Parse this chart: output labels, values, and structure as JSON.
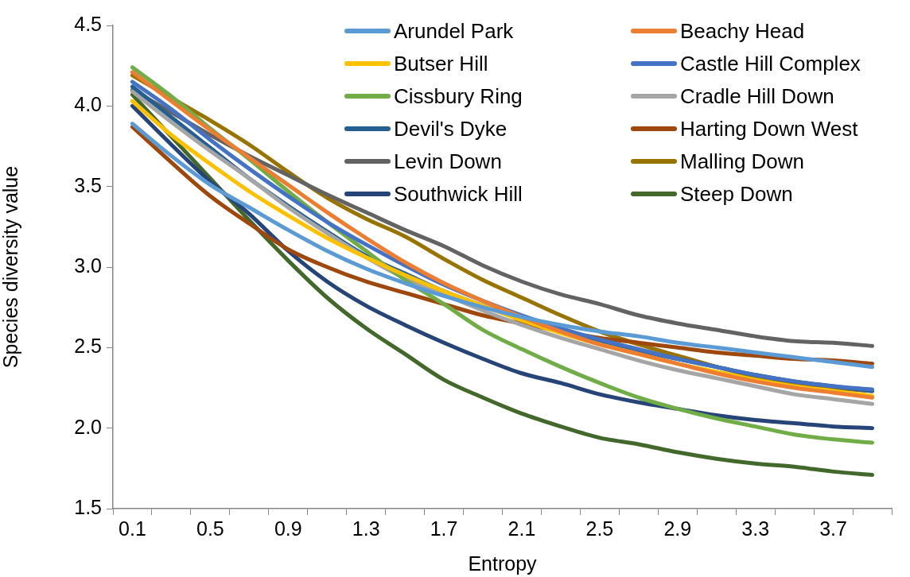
{
  "chart_data": {
    "type": "line",
    "xlabel": "Entropy",
    "ylabel": "Species diversity value",
    "categories": [
      "0.1",
      null,
      "0.5",
      null,
      "0.9",
      null,
      "1.3",
      null,
      "1.7",
      null,
      "2.1",
      null,
      "2.5",
      null,
      "2.9",
      null,
      "3.3",
      null,
      "3.7",
      null
    ],
    "ylim": [
      1.5,
      4.5
    ],
    "yticks": [
      1.5,
      {
        "value": 2,
        "label": "2.0"
      },
      2.5,
      {
        "value": 3,
        "label": "3.0"
      },
      3.5,
      {
        "value": 4,
        "label": "4.0"
      },
      4.5
    ],
    "legend": "top right",
    "marker": "none",
    "series": [
      {
        "name": "Arundel Park",
        "color": "#5b9bd5",
        "values": [
          3.89,
          3.69,
          3.51,
          3.37,
          3.23,
          3.1,
          2.99,
          2.9,
          2.82,
          2.75,
          2.69,
          2.64,
          2.6,
          2.57,
          2.53,
          2.5,
          2.47,
          2.44,
          2.41,
          2.38
        ]
      },
      {
        "name": "Beachy Head",
        "color": "#ed7d31",
        "values": [
          4.21,
          4.03,
          3.85,
          3.68,
          3.51,
          3.34,
          3.18,
          3.03,
          2.9,
          2.79,
          2.69,
          2.6,
          2.52,
          2.46,
          2.4,
          2.34,
          2.29,
          2.25,
          2.22,
          2.19
        ]
      },
      {
        "name": "Butser Hill",
        "color": "#ffc000",
        "values": [
          4.03,
          3.82,
          3.64,
          3.47,
          3.32,
          3.18,
          3.06,
          2.95,
          2.85,
          2.76,
          2.67,
          2.59,
          2.52,
          2.46,
          2.4,
          2.35,
          2.3,
          2.26,
          2.23,
          2.2
        ]
      },
      {
        "name": "Castle Hill Complex",
        "color": "#4472c4",
        "values": [
          4.15,
          3.98,
          3.79,
          3.61,
          3.44,
          3.28,
          3.14,
          3.01,
          2.89,
          2.79,
          2.7,
          2.62,
          2.55,
          2.49,
          2.43,
          2.38,
          2.33,
          2.29,
          2.26,
          2.24
        ]
      },
      {
        "name": "Cissbury Ring",
        "color": "#70ad47",
        "values": [
          4.24,
          4.06,
          3.86,
          3.67,
          3.47,
          3.28,
          3.1,
          2.92,
          2.77,
          2.61,
          2.49,
          2.38,
          2.28,
          2.19,
          2.12,
          2.06,
          2.01,
          1.96,
          1.93,
          1.91
        ]
      },
      {
        "name": "Cradle Hill Down",
        "color": "#a5a5a5",
        "values": [
          4.09,
          3.9,
          3.72,
          3.55,
          3.37,
          3.21,
          3.06,
          2.93,
          2.83,
          2.73,
          2.64,
          2.56,
          2.49,
          2.42,
          2.36,
          2.31,
          2.26,
          2.21,
          2.18,
          2.15
        ]
      },
      {
        "name": "Devil's Dyke",
        "color": "#255e91",
        "values": [
          4.12,
          3.93,
          3.74,
          3.55,
          3.38,
          3.22,
          3.07,
          2.96,
          2.85,
          2.76,
          2.68,
          2.61,
          2.54,
          2.48,
          2.43,
          2.38,
          2.33,
          2.29,
          2.26,
          2.23
        ]
      },
      {
        "name": "Harting Down West",
        "color": "#9e480e",
        "values": [
          3.87,
          3.65,
          3.44,
          3.27,
          3.11,
          3.0,
          2.91,
          2.84,
          2.77,
          2.7,
          2.65,
          2.6,
          2.56,
          2.53,
          2.5,
          2.47,
          2.45,
          2.43,
          2.42,
          2.4
        ]
      },
      {
        "name": "Levin Down",
        "color": "#636363",
        "values": [
          4.1,
          3.96,
          3.82,
          3.69,
          3.57,
          3.45,
          3.34,
          3.23,
          3.13,
          3.01,
          2.91,
          2.83,
          2.77,
          2.7,
          2.65,
          2.61,
          2.57,
          2.54,
          2.53,
          2.51
        ]
      },
      {
        "name": "Malling Down",
        "color": "#997300",
        "values": [
          4.19,
          4.05,
          3.91,
          3.76,
          3.59,
          3.43,
          3.3,
          3.19,
          3.05,
          2.92,
          2.81,
          2.7,
          2.6,
          2.52,
          2.45,
          2.38,
          2.32,
          2.28,
          2.25,
          2.23
        ]
      },
      {
        "name": "Southwick Hill",
        "color": "#264478",
        "values": [
          4.0,
          3.76,
          3.53,
          3.33,
          3.1,
          2.91,
          2.76,
          2.64,
          2.53,
          2.43,
          2.34,
          2.28,
          2.21,
          2.16,
          2.12,
          2.08,
          2.05,
          2.03,
          2.01,
          2.0
        ]
      },
      {
        "name": "Steep Down",
        "color": "#43682b",
        "values": [
          4.07,
          3.81,
          3.55,
          3.29,
          3.04,
          2.81,
          2.62,
          2.46,
          2.3,
          2.19,
          2.09,
          2.01,
          1.94,
          1.9,
          1.85,
          1.81,
          1.78,
          1.76,
          1.73,
          1.71
        ]
      }
    ]
  }
}
